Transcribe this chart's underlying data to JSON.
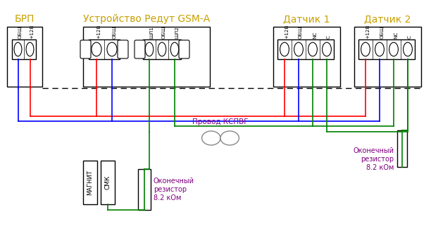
{
  "title_brp": "БРП",
  "title_gsm": "Устройство Редут GSM-А",
  "title_d1": "Датчик 1",
  "title_d2": "Датчик 2",
  "label_kspvg": "Провод КСПВГ",
  "label_res1": "Оконечный\nрезистор\n8.2 кОм",
  "label_res2": "Оконечный\nрезистор\n8.2 кОм",
  "label_magnet": "МАГНИТ",
  "label_smk": "СМК",
  "color_red": "#ff0000",
  "color_blue": "#0000ff",
  "color_green": "#008000",
  "color_gray": "#888888",
  "color_purple": "#800080",
  "color_black": "#000000",
  "color_white": "#ffffff",
  "bg_color": "#ffffff",
  "title_color": "#c8a000",
  "figsize": [
    6.12,
    3.35
  ],
  "dpi": 100
}
